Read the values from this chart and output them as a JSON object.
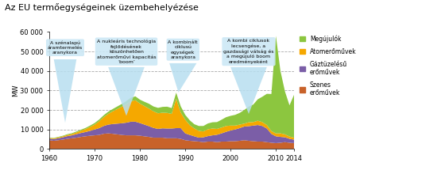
{
  "title": "Az EU termőegységeinek üzembehelyézése",
  "ylabel": "MW",
  "xlim": [
    1960,
    2014
  ],
  "ylim": [
    0,
    60000
  ],
  "yticks": [
    0,
    10000,
    20000,
    30000,
    40000,
    50000,
    60000
  ],
  "ytick_labels": [
    "0",
    "10 000",
    "20 000",
    "30 000",
    "40 000",
    "50 000",
    "60 000"
  ],
  "xticks": [
    1960,
    1970,
    1980,
    1990,
    2000,
    2010,
    2014
  ],
  "colors": {
    "coal": "#c8622a",
    "gas": "#7b5ea7",
    "nuclear": "#f5a800",
    "renewable": "#8cc63f"
  },
  "legend": [
    "Megújulók",
    "Atomerőművek",
    "Gáztüzelésű\nerőművek",
    "Szenes\nerőművek"
  ],
  "years": [
    1960,
    1961,
    1962,
    1963,
    1964,
    1965,
    1966,
    1967,
    1968,
    1969,
    1970,
    1971,
    1972,
    1973,
    1974,
    1975,
    1976,
    1977,
    1978,
    1979,
    1980,
    1981,
    1982,
    1983,
    1984,
    1985,
    1986,
    1987,
    1988,
    1989,
    1990,
    1991,
    1992,
    1993,
    1994,
    1995,
    1996,
    1997,
    1998,
    1999,
    2000,
    2001,
    2002,
    2003,
    2004,
    2005,
    2006,
    2007,
    2008,
    2009,
    2010,
    2011,
    2012,
    2013,
    2014
  ],
  "coal": [
    4500,
    4200,
    4500,
    4800,
    5200,
    5500,
    5800,
    6200,
    6500,
    6800,
    7000,
    7200,
    7800,
    8000,
    7800,
    7500,
    7200,
    7000,
    7000,
    7000,
    6800,
    6500,
    6200,
    5800,
    5800,
    5800,
    5500,
    5500,
    5500,
    5200,
    4500,
    4200,
    4000,
    3800,
    3500,
    3800,
    3800,
    3500,
    3800,
    3800,
    4000,
    4000,
    4200,
    4500,
    4200,
    4000,
    3800,
    3800,
    3500,
    3200,
    3000,
    3200,
    3500,
    3200,
    3000
  ],
  "gas": [
    800,
    900,
    1000,
    1200,
    1400,
    1500,
    1800,
    2000,
    2200,
    2500,
    3000,
    3500,
    4000,
    4500,
    5000,
    5500,
    6000,
    6500,
    7000,
    7000,
    6500,
    6000,
    5500,
    5000,
    4500,
    4800,
    5000,
    5000,
    5200,
    5500,
    3500,
    3000,
    2500,
    2000,
    2500,
    2800,
    3200,
    3800,
    4200,
    5000,
    5500,
    6000,
    6500,
    7000,
    7500,
    8000,
    8500,
    8000,
    7000,
    4500,
    3500,
    3000,
    2500,
    2000,
    1800
  ],
  "nuclear": [
    300,
    400,
    400,
    500,
    600,
    700,
    900,
    1200,
    1500,
    2000,
    2500,
    3500,
    4500,
    5500,
    6500,
    7500,
    8500,
    9500,
    10500,
    11000,
    10000,
    9500,
    9000,
    8500,
    8000,
    8000,
    8000,
    7500,
    15000,
    8000,
    7000,
    5000,
    4000,
    3500,
    3000,
    3500,
    3500,
    3000,
    3000,
    3000,
    2500,
    2000,
    1800,
    1500,
    2000,
    1800,
    2200,
    2000,
    1800,
    1500,
    1500,
    1800,
    1500,
    1200,
    1000
  ],
  "renewable": [
    200,
    200,
    300,
    300,
    400,
    400,
    500,
    500,
    600,
    700,
    800,
    900,
    1000,
    1100,
    1200,
    1300,
    1400,
    1600,
    1800,
    2000,
    2000,
    2200,
    2500,
    2500,
    2800,
    3000,
    3200,
    3000,
    3200,
    3200,
    2500,
    2500,
    2200,
    2500,
    2800,
    3000,
    3200,
    3500,
    4000,
    4500,
    5000,
    5500,
    6000,
    7000,
    8000,
    9000,
    11000,
    13000,
    16000,
    19000,
    50000,
    32000,
    22000,
    16000,
    22000
  ]
}
